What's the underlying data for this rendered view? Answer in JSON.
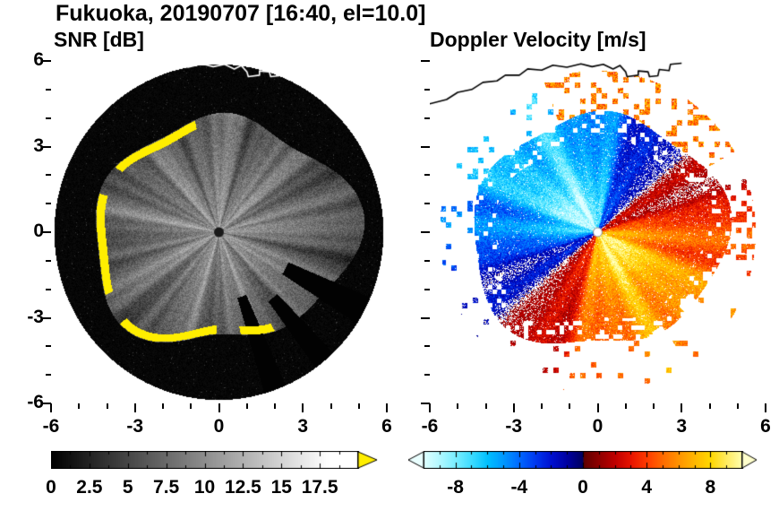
{
  "title": "Fukuoka, 20190707 [16:40, el=10.0]",
  "station": "Fukuoka",
  "date": "20190707",
  "time": "16:40",
  "elevation": "10.0",
  "chart_data": [
    {
      "type": "heatmap",
      "panel": "left",
      "title": "SNR [dB]",
      "xlim": [
        -6,
        6
      ],
      "ylim": [
        -6,
        6
      ],
      "xticks": [
        -6,
        -3,
        0,
        3,
        6
      ],
      "xtick_labels": [
        "-6",
        "-3",
        "0",
        "3",
        "6"
      ],
      "yticks": [
        6,
        3,
        0,
        -3,
        -6
      ],
      "ytick_labels": [
        "6",
        "3",
        "0",
        "-3",
        "-6"
      ],
      "minor_step": 1,
      "grid": false,
      "description": "Radar PPI scan of signal-to-noise ratio: grey speckled echo disc with radial beam streaks, saturated yellow arc (over-range SNR) along the western and southern echo boundary, black no-echo ring out to maximum range circle, dark centre dot at radar location, white coastline overlay near the top",
      "colorbar": {
        "range": [
          0,
          20
        ],
        "tick_step": 1.25,
        "label_values": [
          0,
          2.5,
          5,
          7.5,
          10,
          12.5,
          15,
          17.5
        ],
        "labels": [
          "0",
          "2.5",
          "5",
          "7.5",
          "10",
          "12.5",
          "15",
          "17.5"
        ],
        "colormap": "black-to-white grayscale",
        "over_arrow_color": "#ffee00"
      },
      "model": {
        "max_range": 5.88,
        "edge": [
          4.25,
          0.4,
          0.22,
          0.18
        ],
        "base_snr": 10.5,
        "range_decay": 1.05,
        "yellow_band_deg": [
          100,
          -60
        ],
        "blocked_sectors": [
          [
            -28,
            5,
            2.7
          ],
          [
            -50,
            4,
            3.0
          ],
          [
            -70,
            4,
            2.4
          ]
        ],
        "center_dot_radius": 0.17
      }
    },
    {
      "type": "heatmap",
      "panel": "right",
      "title": "Doppler Velocity [m/s]",
      "xlim": [
        -6,
        6
      ],
      "ylim": [
        -6,
        6
      ],
      "xticks": [
        -6,
        -3,
        0,
        3,
        6
      ],
      "xtick_labels": [
        "-6",
        "-3",
        "0",
        "3",
        "6"
      ],
      "yticks": [
        6,
        3,
        0,
        -3,
        -6
      ],
      "ytick_labels": [
        "6",
        "3",
        "0",
        "-3",
        "-6"
      ],
      "minor_step": 1,
      "grid": false,
      "description": "Radar PPI scan of Doppler velocity: dipole pattern with negative velocities (cyan to dark blue, toward radar) over the west and northwest, positive velocities (dark red to orange and yellow, away from radar) over the east and south, white no-data gaps along the zero-velocity line, scattered echo patches beyond the main echo region, white centre dot, black coastline overlay near the top",
      "colorbar": {
        "range": [
          -10,
          10
        ],
        "tick_step": 1,
        "label_values": [
          -8,
          -4,
          0,
          4,
          8
        ],
        "labels": [
          "-8",
          "-4",
          "0",
          "4",
          "8"
        ],
        "under_arrow_color": "#eaffff",
        "over_arrow_color": "#ffffcc",
        "stops": [
          [
            -10,
            "#e0ffff"
          ],
          [
            -9,
            "#b0f8ff"
          ],
          [
            -8,
            "#78eeff"
          ],
          [
            -7,
            "#3cdcff"
          ],
          [
            -6,
            "#00c0ff"
          ],
          [
            -5,
            "#0098ff"
          ],
          [
            -4,
            "#0068ff"
          ],
          [
            -3,
            "#0038f0"
          ],
          [
            -2,
            "#0010d0"
          ],
          [
            -1,
            "#0000a0"
          ],
          [
            -0.05,
            "#000060"
          ],
          [
            0.05,
            "#600000"
          ],
          [
            1,
            "#900000"
          ],
          [
            2,
            "#c00000"
          ],
          [
            3,
            "#e81400"
          ],
          [
            4,
            "#ff3c00"
          ],
          [
            5,
            "#ff6c00"
          ],
          [
            6,
            "#ff9400"
          ],
          [
            7,
            "#ffb800"
          ],
          [
            8,
            "#ffd800"
          ],
          [
            9,
            "#ffec60"
          ],
          [
            10,
            "#ffffb0"
          ]
        ]
      },
      "model": {
        "max_range": 5.88,
        "edge": [
          4.3,
          0.3,
          0.18,
          0.12
        ],
        "dipole_direction_deg": -49,
        "amp_base": 6.2,
        "amp_center_boost": 3.4,
        "blocked_sectors": [
          [
            -38,
            4,
            3.9
          ],
          [
            -58,
            3,
            4.0
          ]
        ],
        "center_dot_radius": 0.16
      }
    }
  ],
  "coastline": [
    [
      -6,
      4.5
    ],
    [
      -5.4,
      4.65
    ],
    [
      -5.0,
      4.9
    ],
    [
      -4.5,
      5.0
    ],
    [
      -4.1,
      5.25
    ],
    [
      -3.6,
      5.3
    ],
    [
      -3.3,
      5.5
    ],
    [
      -2.8,
      5.5
    ],
    [
      -2.5,
      5.72
    ],
    [
      -2.0,
      5.68
    ],
    [
      -1.6,
      5.85
    ],
    [
      -1.1,
      5.78
    ],
    [
      -0.6,
      5.9
    ],
    [
      -0.2,
      5.8
    ],
    [
      0.2,
      5.88
    ],
    [
      0.55,
      5.72
    ],
    [
      0.8,
      5.84
    ],
    [
      1.0,
      5.62
    ],
    [
      1.05,
      5.45
    ],
    [
      1.45,
      5.5
    ],
    [
      1.45,
      5.65
    ],
    [
      1.8,
      5.62
    ],
    [
      1.85,
      5.45
    ],
    [
      2.15,
      5.48
    ],
    [
      2.2,
      5.7
    ],
    [
      2.55,
      5.66
    ],
    [
      2.6,
      5.88
    ],
    [
      3.0,
      5.92
    ]
  ]
}
